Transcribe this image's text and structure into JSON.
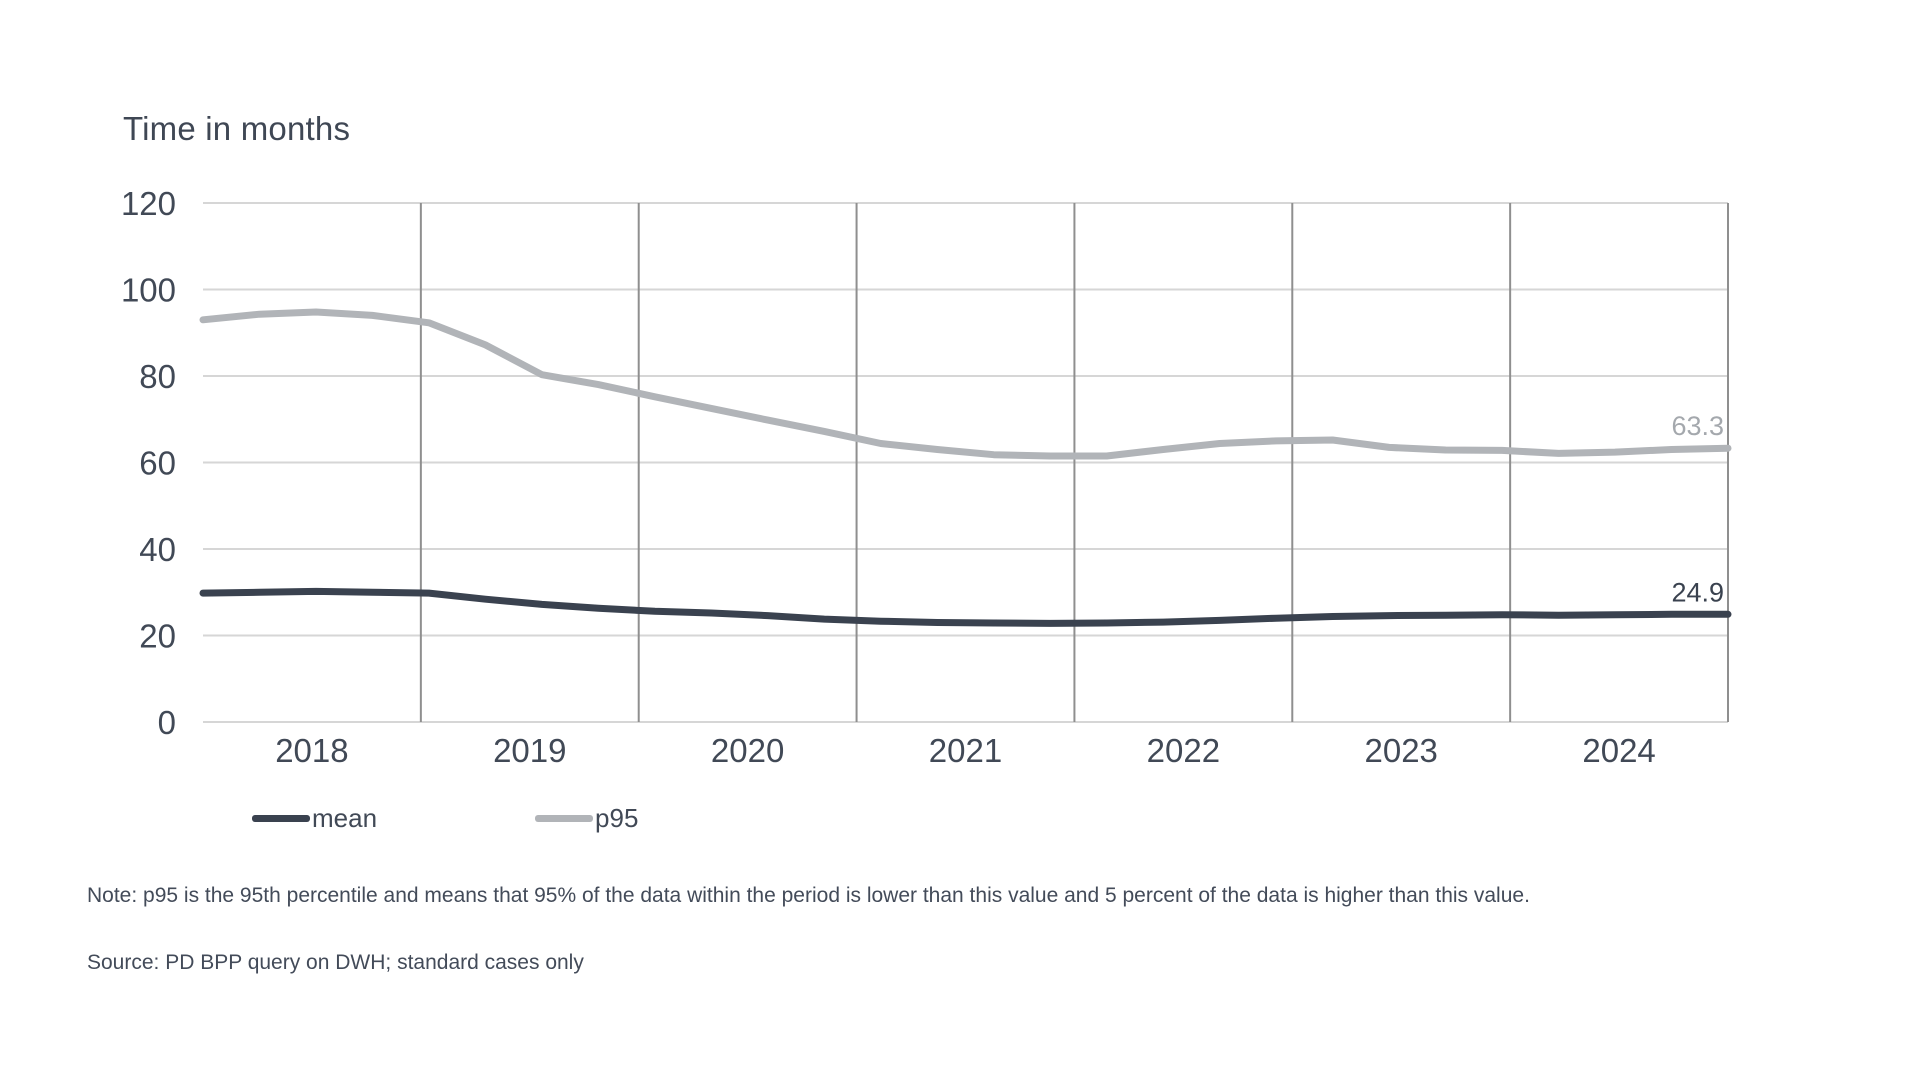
{
  "chart": {
    "title": "Time in months"
  },
  "chart_data": {
    "type": "line",
    "title": "Time in months",
    "xlabel": "",
    "ylabel": "Time in months",
    "ylim": [
      0,
      120
    ],
    "yticks": [
      0,
      20,
      40,
      60,
      80,
      100,
      120
    ],
    "categories": [
      "2018",
      "2019",
      "2020",
      "2021",
      "2022",
      "2023",
      "2024"
    ],
    "x_resolution": "quarterly, 2018-Q1 through 2024-Q4",
    "grid": {
      "horizontal": true,
      "vertical": true
    },
    "legend_position": "bottom-left",
    "series": [
      {
        "name": "p95",
        "color": "#b1b4b8",
        "label_color": "#a4a8ad",
        "end_label": "63.3",
        "values": [
          93.0,
          94.3,
          94.8,
          94.0,
          92.3,
          87.2,
          80.3,
          78.0,
          75.2,
          72.5,
          69.8,
          67.2,
          64.4,
          63.0,
          61.8,
          61.5,
          61.5,
          63.0,
          64.4,
          65.0,
          65.2,
          63.5,
          62.9,
          62.8,
          62.1,
          62.4,
          63.0,
          63.3
        ]
      },
      {
        "name": "mean",
        "color": "#3a424f",
        "label_color": "#3a424f",
        "end_label": "24.9",
        "values": [
          29.8,
          30.0,
          30.2,
          30.0,
          29.8,
          28.4,
          27.2,
          26.3,
          25.6,
          25.2,
          24.6,
          23.8,
          23.3,
          23.0,
          22.9,
          22.8,
          22.9,
          23.1,
          23.5,
          24.0,
          24.4,
          24.6,
          24.7,
          24.8,
          24.7,
          24.8,
          24.9,
          24.9
        ]
      }
    ],
    "colors": {
      "grid_horizontal": "#d6d6d6",
      "grid_vertical": "#8f8f8f",
      "axis_line": "#d6d6d6",
      "background": "#ffffff"
    }
  },
  "legend": {
    "items": [
      {
        "label": "mean",
        "color": "#3a424f"
      },
      {
        "label": "p95",
        "color": "#b1b4b8"
      }
    ]
  },
  "footer": {
    "note": "Note: p95 is the 95th percentile and means that 95% of the data within the period is lower than this value and 5 percent of the data is higher than this value.",
    "source": "Source: PD BPP query on DWH; standard cases only"
  }
}
